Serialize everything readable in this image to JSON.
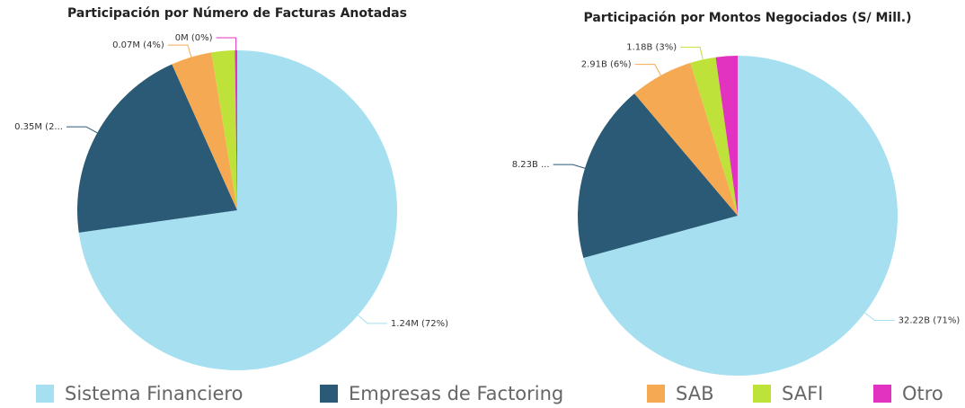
{
  "chart_data": [
    {
      "type": "pie",
      "title": "Participación por Número de Facturas Anotadas",
      "categories": [
        "Sistema Financiero",
        "Empresas de Factoring",
        "SAB",
        "SAFI",
        "Otro"
      ],
      "values": [
        1.24,
        0.35,
        0.07,
        0.04,
        0.004
      ],
      "value_labels": [
        "1.24M (72%)",
        "0.35M (2...",
        "0.07M (4%)",
        null,
        "0M (0%)"
      ],
      "colors": [
        "#a5dff0",
        "#2a5a75",
        "#f5a952",
        "#bfe23a",
        "#e233c0"
      ]
    },
    {
      "type": "pie",
      "title": "Participación por Montos Negociados (S/ Mill.)",
      "categories": [
        "Sistema Financiero",
        "Empresas de Factoring",
        "SAB",
        "SAFI",
        "Otro"
      ],
      "values": [
        32.22,
        8.23,
        2.91,
        1.18,
        1.0
      ],
      "value_labels": [
        "32.22B (71%)",
        "8.23B ...",
        "2.91B (6%)",
        "1.18B (3%)",
        null
      ],
      "colors": [
        "#a5dff0",
        "#2a5a75",
        "#f5a952",
        "#bfe23a",
        "#e233c0"
      ]
    }
  ]
}
